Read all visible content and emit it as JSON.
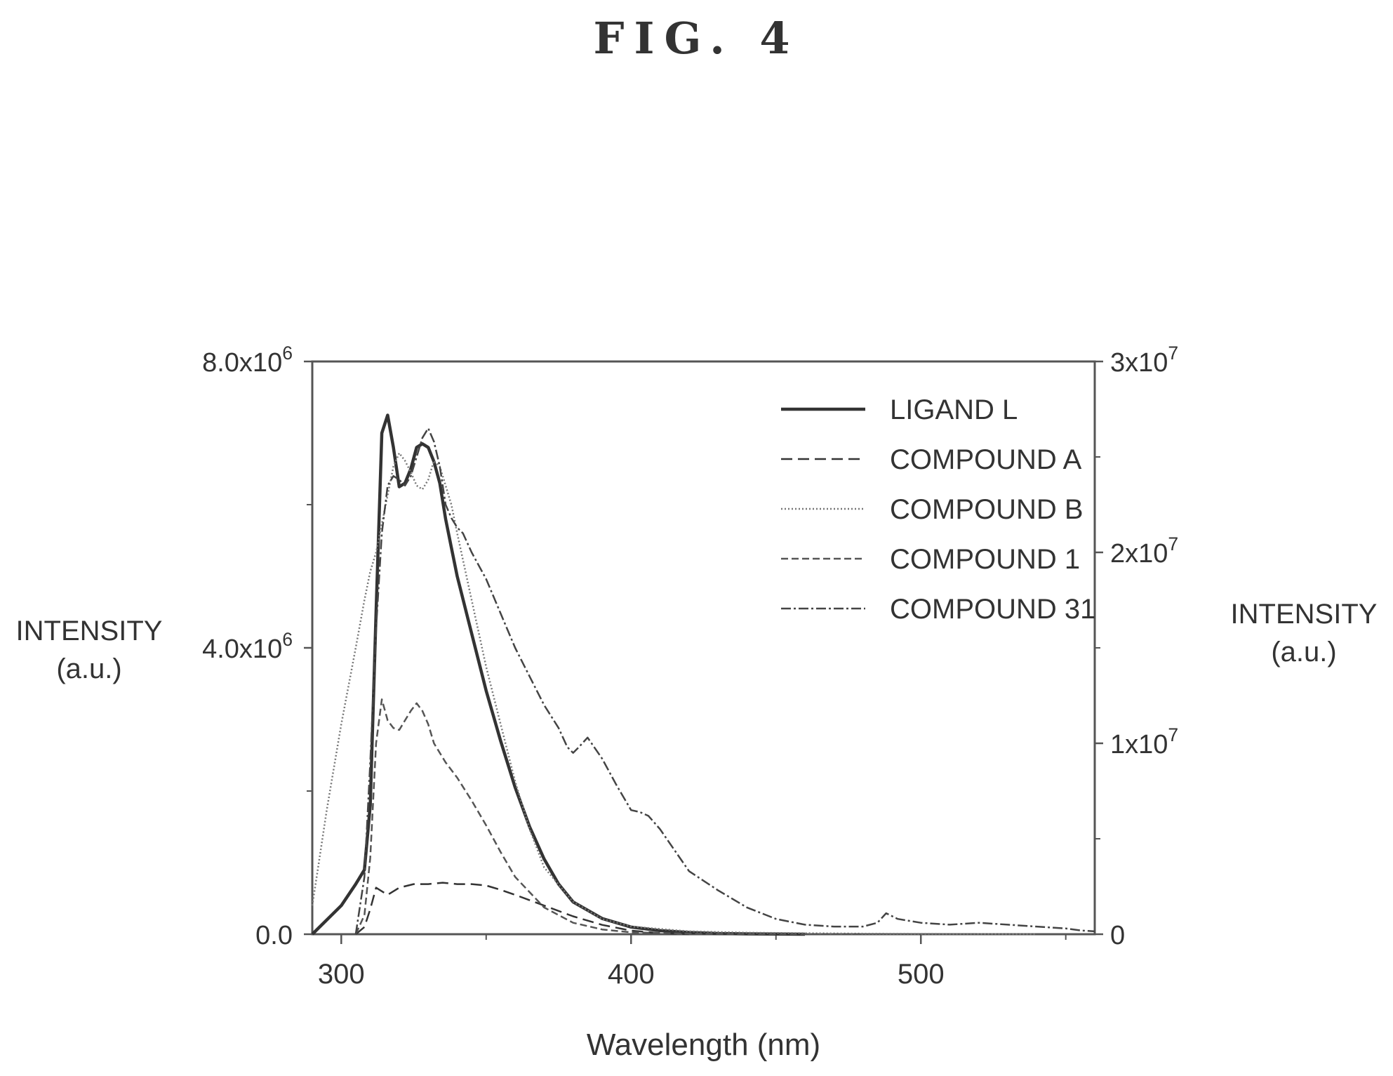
{
  "figure": {
    "title": "FIG.  4"
  },
  "chart_data": {
    "type": "line",
    "xlabel": "Wavelength (nm)",
    "ylabel_left": [
      "INTENSITY",
      "(a.u.)"
    ],
    "ylabel_right": [
      "INTENSITY",
      "(a.u.)"
    ],
    "xlim": [
      290,
      560
    ],
    "ylim_left": [
      0,
      8000000
    ],
    "ylim_right": [
      0,
      30000000
    ],
    "x_ticks": [
      {
        "value": 300,
        "label": "300"
      },
      {
        "value": 400,
        "label": "400"
      },
      {
        "value": 500,
        "label": "500"
      }
    ],
    "y_left_ticks": [
      {
        "value": 0,
        "base": "0.0",
        "exp": ""
      },
      {
        "value": 4000000,
        "base": "4.0x10",
        "exp": "6"
      },
      {
        "value": 8000000,
        "base": "8.0x10",
        "exp": "6"
      }
    ],
    "y_right_ticks": [
      {
        "value": 0,
        "base": "0",
        "exp": ""
      },
      {
        "value": 10000000,
        "base": "1x10",
        "exp": "7"
      },
      {
        "value": 20000000,
        "base": "2x10",
        "exp": "7"
      },
      {
        "value": 30000000,
        "base": "3x10",
        "exp": "7"
      }
    ],
    "legend_position": "top-right",
    "grid": false,
    "series": [
      {
        "name": "LIGAND L",
        "axis": "left",
        "color": "#333333",
        "dash": "",
        "width": 4.5,
        "x": [
          290,
          300,
          305,
          308,
          310,
          312,
          314,
          316,
          318,
          320,
          322,
          324,
          326,
          328,
          330,
          332,
          334,
          336,
          338,
          340,
          345,
          350,
          355,
          360,
          365,
          370,
          375,
          380,
          390,
          400,
          410,
          420,
          430,
          440,
          450,
          460
        ],
        "y": [
          0,
          400000,
          700000,
          900000,
          1800000,
          4500000,
          7000000,
          7250000,
          6800000,
          6250000,
          6300000,
          6500000,
          6800000,
          6850000,
          6800000,
          6600000,
          6300000,
          5800000,
          5400000,
          5000000,
          4200000,
          3400000,
          2700000,
          2050000,
          1500000,
          1050000,
          700000,
          450000,
          220000,
          100000,
          50000,
          25000,
          10000,
          5000,
          2000,
          0
        ]
      },
      {
        "name": "COMPOUND A",
        "axis": "left",
        "color": "#333333",
        "dash": "16 8",
        "width": 2.5,
        "x": [
          305,
          308,
          310,
          312,
          314,
          316,
          320,
          325,
          330,
          335,
          340,
          345,
          350,
          355,
          360,
          370,
          380,
          390,
          400,
          410,
          420
        ],
        "y": [
          0,
          100000,
          350000,
          650000,
          600000,
          550000,
          650000,
          700000,
          700000,
          720000,
          700000,
          700000,
          680000,
          620000,
          550000,
          400000,
          250000,
          130000,
          50000,
          15000,
          0
        ]
      },
      {
        "name": "COMPOUND B",
        "axis": "right",
        "color": "#777777",
        "dash": "2 3",
        "width": 2.5,
        "x": [
          290,
          292,
          295,
          300,
          305,
          308,
          310,
          312,
          314,
          316,
          318,
          320,
          322,
          324,
          326,
          328,
          330,
          332,
          334,
          336,
          338,
          340,
          345,
          350,
          355,
          360,
          365,
          370,
          380,
          390,
          400,
          420,
          440,
          460,
          480,
          500,
          520,
          540
        ],
        "y": [
          1500000,
          3500000,
          6500000,
          11000000,
          15000000,
          17500000,
          19000000,
          20000000,
          21500000,
          23000000,
          24500000,
          25200000,
          24800000,
          24200000,
          23500000,
          23300000,
          23800000,
          24800000,
          24500000,
          23500000,
          22500000,
          21000000,
          17500000,
          14000000,
          11000000,
          8000000,
          5500000,
          3500000,
          1700000,
          800000,
          400000,
          150000,
          80000,
          50000,
          30000,
          20000,
          10000,
          0
        ]
      },
      {
        "name": "COMPOUND 1",
        "axis": "right",
        "color": "#555555",
        "dash": "10 5",
        "width": 2.5,
        "x": [
          305,
          308,
          310,
          312,
          314,
          316,
          318,
          320,
          322,
          324,
          326,
          328,
          330,
          332,
          334,
          336,
          340,
          345,
          350,
          355,
          360,
          370,
          380,
          390,
          400,
          420,
          440,
          460,
          480
        ],
        "y": [
          0,
          1000000,
          4000000,
          10000000,
          12300000,
          11200000,
          10800000,
          10700000,
          11200000,
          11700000,
          12100000,
          11700000,
          11000000,
          10000000,
          9500000,
          9000000,
          8200000,
          7000000,
          5700000,
          4300000,
          3000000,
          1400000,
          600000,
          250000,
          100000,
          30000,
          10000,
          5000,
          0
        ]
      },
      {
        "name": "COMPOUND 31",
        "axis": "right",
        "color": "#444444",
        "dash": "14 4 3 4",
        "width": 2.5,
        "x": [
          305,
          308,
          310,
          312,
          314,
          316,
          318,
          320,
          322,
          324,
          326,
          328,
          330,
          332,
          334,
          336,
          338,
          340,
          342,
          345,
          350,
          355,
          360,
          365,
          370,
          375,
          378,
          380,
          382,
          385,
          390,
          395,
          400,
          403,
          406,
          410,
          415,
          420,
          430,
          440,
          450,
          460,
          470,
          480,
          485,
          488,
          492,
          500,
          510,
          520,
          530,
          540,
          550,
          555,
          560
        ],
        "y": [
          0,
          3000000,
          9000000,
          16000000,
          21000000,
          23500000,
          24000000,
          23800000,
          23500000,
          24000000,
          25000000,
          26000000,
          26500000,
          25800000,
          24500000,
          22500000,
          21800000,
          21300000,
          21000000,
          20000000,
          18600000,
          16800000,
          15000000,
          13500000,
          12000000,
          10800000,
          9800000,
          9500000,
          9800000,
          10300000,
          9200000,
          7800000,
          6500000,
          6400000,
          6200000,
          5500000,
          4400000,
          3300000,
          2300000,
          1400000,
          800000,
          500000,
          400000,
          400000,
          600000,
          1100000,
          800000,
          600000,
          500000,
          600000,
          500000,
          400000,
          300000,
          200000,
          150000
        ]
      }
    ]
  }
}
